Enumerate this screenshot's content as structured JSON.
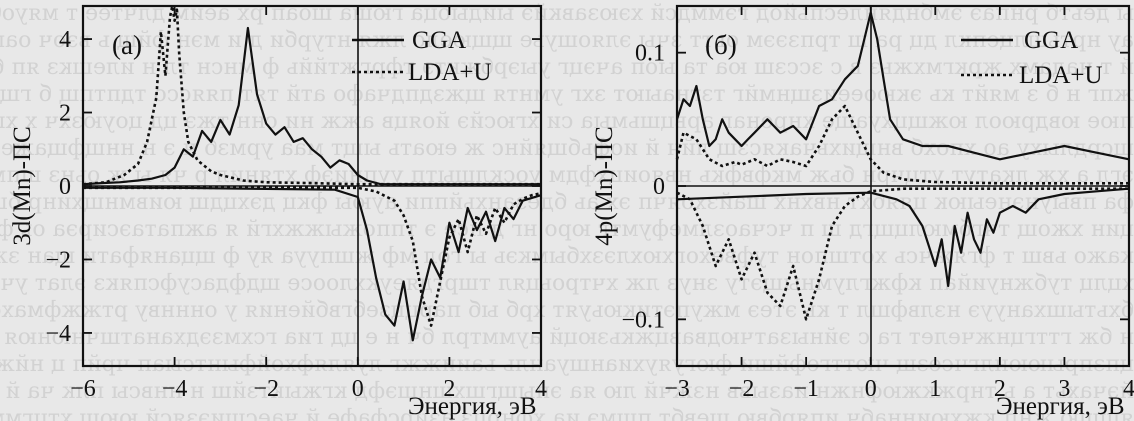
{
  "chart_data": [
    {
      "type": "line",
      "panel_label": "(а)",
      "xlabel": "Энергия, эВ",
      "ylabel": "3d(Mn)-ПС",
      "xlim": [
        -6,
        4
      ],
      "ylim": [
        -4.9,
        4.9
      ],
      "xticks": [
        "-6",
        "-4",
        "-2",
        "0",
        "2",
        "4"
      ],
      "yticks": [
        "4",
        "2",
        "0",
        "-2",
        "-4"
      ],
      "legend_position": "top-right",
      "legend": [
        "GGA",
        "LDA+U"
      ],
      "series": [
        {
          "name": "GGA",
          "style": "solid",
          "part": "spin-up",
          "x": [
            -6,
            -5.6,
            -5.2,
            -4.8,
            -4.5,
            -4.2,
            -4,
            -3.8,
            -3.6,
            -3.4,
            -3.2,
            -3,
            -2.8,
            -2.6,
            -2.4,
            -2.2,
            -2,
            -1.8,
            -1.6,
            -1.4,
            -1.2,
            -1,
            -0.8,
            -0.6,
            -0.4,
            -0.2,
            0,
            0.2,
            0.5,
            1,
            2,
            3,
            4
          ],
          "y": [
            0.05,
            0.08,
            0.1,
            0.15,
            0.2,
            0.3,
            0.5,
            1,
            0.8,
            1.5,
            1.2,
            1.8,
            1.4,
            2.2,
            4.3,
            2.5,
            1.7,
            1.4,
            1.6,
            1.2,
            1.3,
            1.0,
            0.8,
            0.5,
            0.7,
            0.6,
            0.3,
            0.15,
            0.05,
            0.05,
            0.05,
            0.05,
            0.05
          ]
        },
        {
          "name": "GGA",
          "style": "solid",
          "part": "spin-down",
          "x": [
            -6,
            -4,
            -2,
            -0.5,
            0,
            0.2,
            0.4,
            0.6,
            0.8,
            1,
            1.2,
            1.4,
            1.6,
            1.8,
            2,
            2.2,
            2.4,
            2.6,
            2.8,
            3,
            3.2,
            3.4,
            3.6,
            4
          ],
          "y": [
            -0.05,
            -0.05,
            -0.08,
            -0.1,
            -0.3,
            -1.2,
            -2.5,
            -3.5,
            -3.8,
            -2.6,
            -4.2,
            -3.0,
            -2.0,
            -2.5,
            -1.0,
            -1.8,
            -0.6,
            -1.2,
            -0.7,
            -1.5,
            -0.6,
            -0.9,
            -0.4,
            -0.25
          ]
        },
        {
          "name": "LDA+U",
          "style": "dotted",
          "part": "spin-up",
          "x": [
            -6,
            -5.5,
            -5.1,
            -4.8,
            -4.6,
            -4.4,
            -4.3,
            -4.2,
            -4.1,
            -4.05,
            -4,
            -3.95,
            -3.9,
            -3.8,
            -3.7,
            -3.5,
            -3.2,
            -3,
            -2.5,
            -2,
            -1,
            0,
            1,
            2,
            3,
            4
          ],
          "y": [
            0.05,
            0.1,
            0.3,
            0.6,
            1.2,
            2.4,
            4.2,
            3.0,
            4.6,
            4.9,
            4.5,
            4.8,
            3.6,
            2.0,
            1.2,
            0.7,
            0.4,
            0.3,
            0.15,
            0.1,
            0.08,
            0.05,
            0.05,
            0.05,
            0.05,
            0.05
          ]
        },
        {
          "name": "LDA+U",
          "style": "dotted",
          "part": "spin-down",
          "x": [
            -6,
            0,
            0.4,
            0.8,
            1.0,
            1.2,
            1.4,
            1.6,
            1.8,
            2.0,
            2.2,
            2.4,
            2.6,
            2.8,
            3.0,
            3.2,
            3.4,
            3.6,
            3.8,
            4
          ],
          "y": [
            -0.05,
            -0.05,
            -0.15,
            -0.4,
            -0.8,
            -1.5,
            -3.0,
            -3.8,
            -2.6,
            -1.4,
            -0.9,
            -1.8,
            -0.8,
            -1.3,
            -0.6,
            -1.0,
            -0.5,
            -0.35,
            -0.25,
            -0.2
          ]
        }
      ]
    },
    {
      "type": "line",
      "panel_label": "(б)",
      "xlabel": "Энергия, эВ",
      "ylabel": "4p(Mn)-ПС",
      "xlim": [
        -3,
        4
      ],
      "ylim": [
        -0.135,
        0.135
      ],
      "xticks": [
        "-3",
        "-2",
        "-1",
        "0",
        "1",
        "2",
        "3",
        "4"
      ],
      "yticks": [
        "0.1",
        "0",
        "-0.1"
      ],
      "legend_position": "top-right",
      "legend": [
        "GGA",
        "LDA+U"
      ],
      "series": [
        {
          "name": "GGA",
          "style": "solid",
          "part": "spin-up",
          "x": [
            -3,
            -2.9,
            -2.8,
            -2.7,
            -2.6,
            -2.5,
            -2.4,
            -2.3,
            -2.2,
            -2.1,
            -2,
            -1.9,
            -1.8,
            -1.6,
            -1.4,
            -1.2,
            -1,
            -0.8,
            -0.6,
            -0.4,
            -0.2,
            -0.1,
            0,
            0.1,
            0.2,
            0.3,
            0.5,
            0.8,
            1.2,
            1.6,
            2,
            2.5,
            3,
            3.5,
            4
          ],
          "y": [
            0.05,
            0.065,
            0.06,
            0.075,
            0.05,
            0.03,
            0.035,
            0.05,
            0.04,
            0.035,
            0.03,
            0.035,
            0.04,
            0.05,
            0.04,
            0.045,
            0.035,
            0.06,
            0.065,
            0.08,
            0.09,
            0.11,
            0.13,
            0.11,
            0.08,
            0.05,
            0.035,
            0.03,
            0.03,
            0.025,
            0.02,
            0.025,
            0.03,
            0.025,
            0.02
          ]
        },
        {
          "name": "GGA",
          "style": "solid",
          "part": "spin-down",
          "x": [
            -3,
            -2,
            -1,
            0,
            0.4,
            0.6,
            0.8,
            1.0,
            1.1,
            1.2,
            1.3,
            1.4,
            1.5,
            1.6,
            1.7,
            1.8,
            1.9,
            2.0,
            2.2,
            2.4,
            2.6,
            3,
            3.5,
            4
          ],
          "y": [
            -0.01,
            -0.008,
            -0.006,
            -0.005,
            -0.01,
            -0.015,
            -0.03,
            -0.06,
            -0.04,
            -0.075,
            -0.03,
            -0.05,
            -0.02,
            -0.04,
            -0.05,
            -0.025,
            -0.035,
            -0.02,
            -0.015,
            -0.02,
            -0.01,
            -0.006,
            -0.004,
            -0.002
          ]
        },
        {
          "name": "LDA+U",
          "style": "dotted",
          "part": "spin-up",
          "x": [
            -3,
            -2.9,
            -2.7,
            -2.5,
            -2.3,
            -2.1,
            -2,
            -1.8,
            -1.6,
            -1.4,
            -1.2,
            -1,
            -0.8,
            -0.6,
            -0.4,
            -0.2,
            0,
            0.2,
            0.5,
            1,
            2,
            3,
            4
          ],
          "y": [
            0.02,
            0.04,
            0.035,
            0.02,
            0.015,
            0.018,
            0.016,
            0.02,
            0.015,
            0.02,
            0.018,
            0.015,
            0.03,
            0.05,
            0.06,
            0.04,
            0.02,
            0.01,
            0.005,
            0.003,
            0.002,
            0.002,
            0.002
          ]
        },
        {
          "name": "LDA+U",
          "style": "dotted",
          "part": "spin-down",
          "x": [
            -3,
            -2.8,
            -2.6,
            -2.4,
            -2.2,
            -2.0,
            -1.8,
            -1.6,
            -1.4,
            -1.2,
            -1.0,
            -0.8,
            -0.6,
            -0.4,
            -0.2,
            0,
            0.5,
            1,
            2,
            3,
            4
          ],
          "y": [
            -0.005,
            -0.01,
            -0.03,
            -0.06,
            -0.04,
            -0.07,
            -0.05,
            -0.08,
            -0.09,
            -0.06,
            -0.1,
            -0.07,
            -0.03,
            -0.015,
            -0.008,
            -0.004,
            -0.002,
            -0.002,
            -0.002,
            -0.002,
            -0.002
          ]
        }
      ]
    }
  ]
}
